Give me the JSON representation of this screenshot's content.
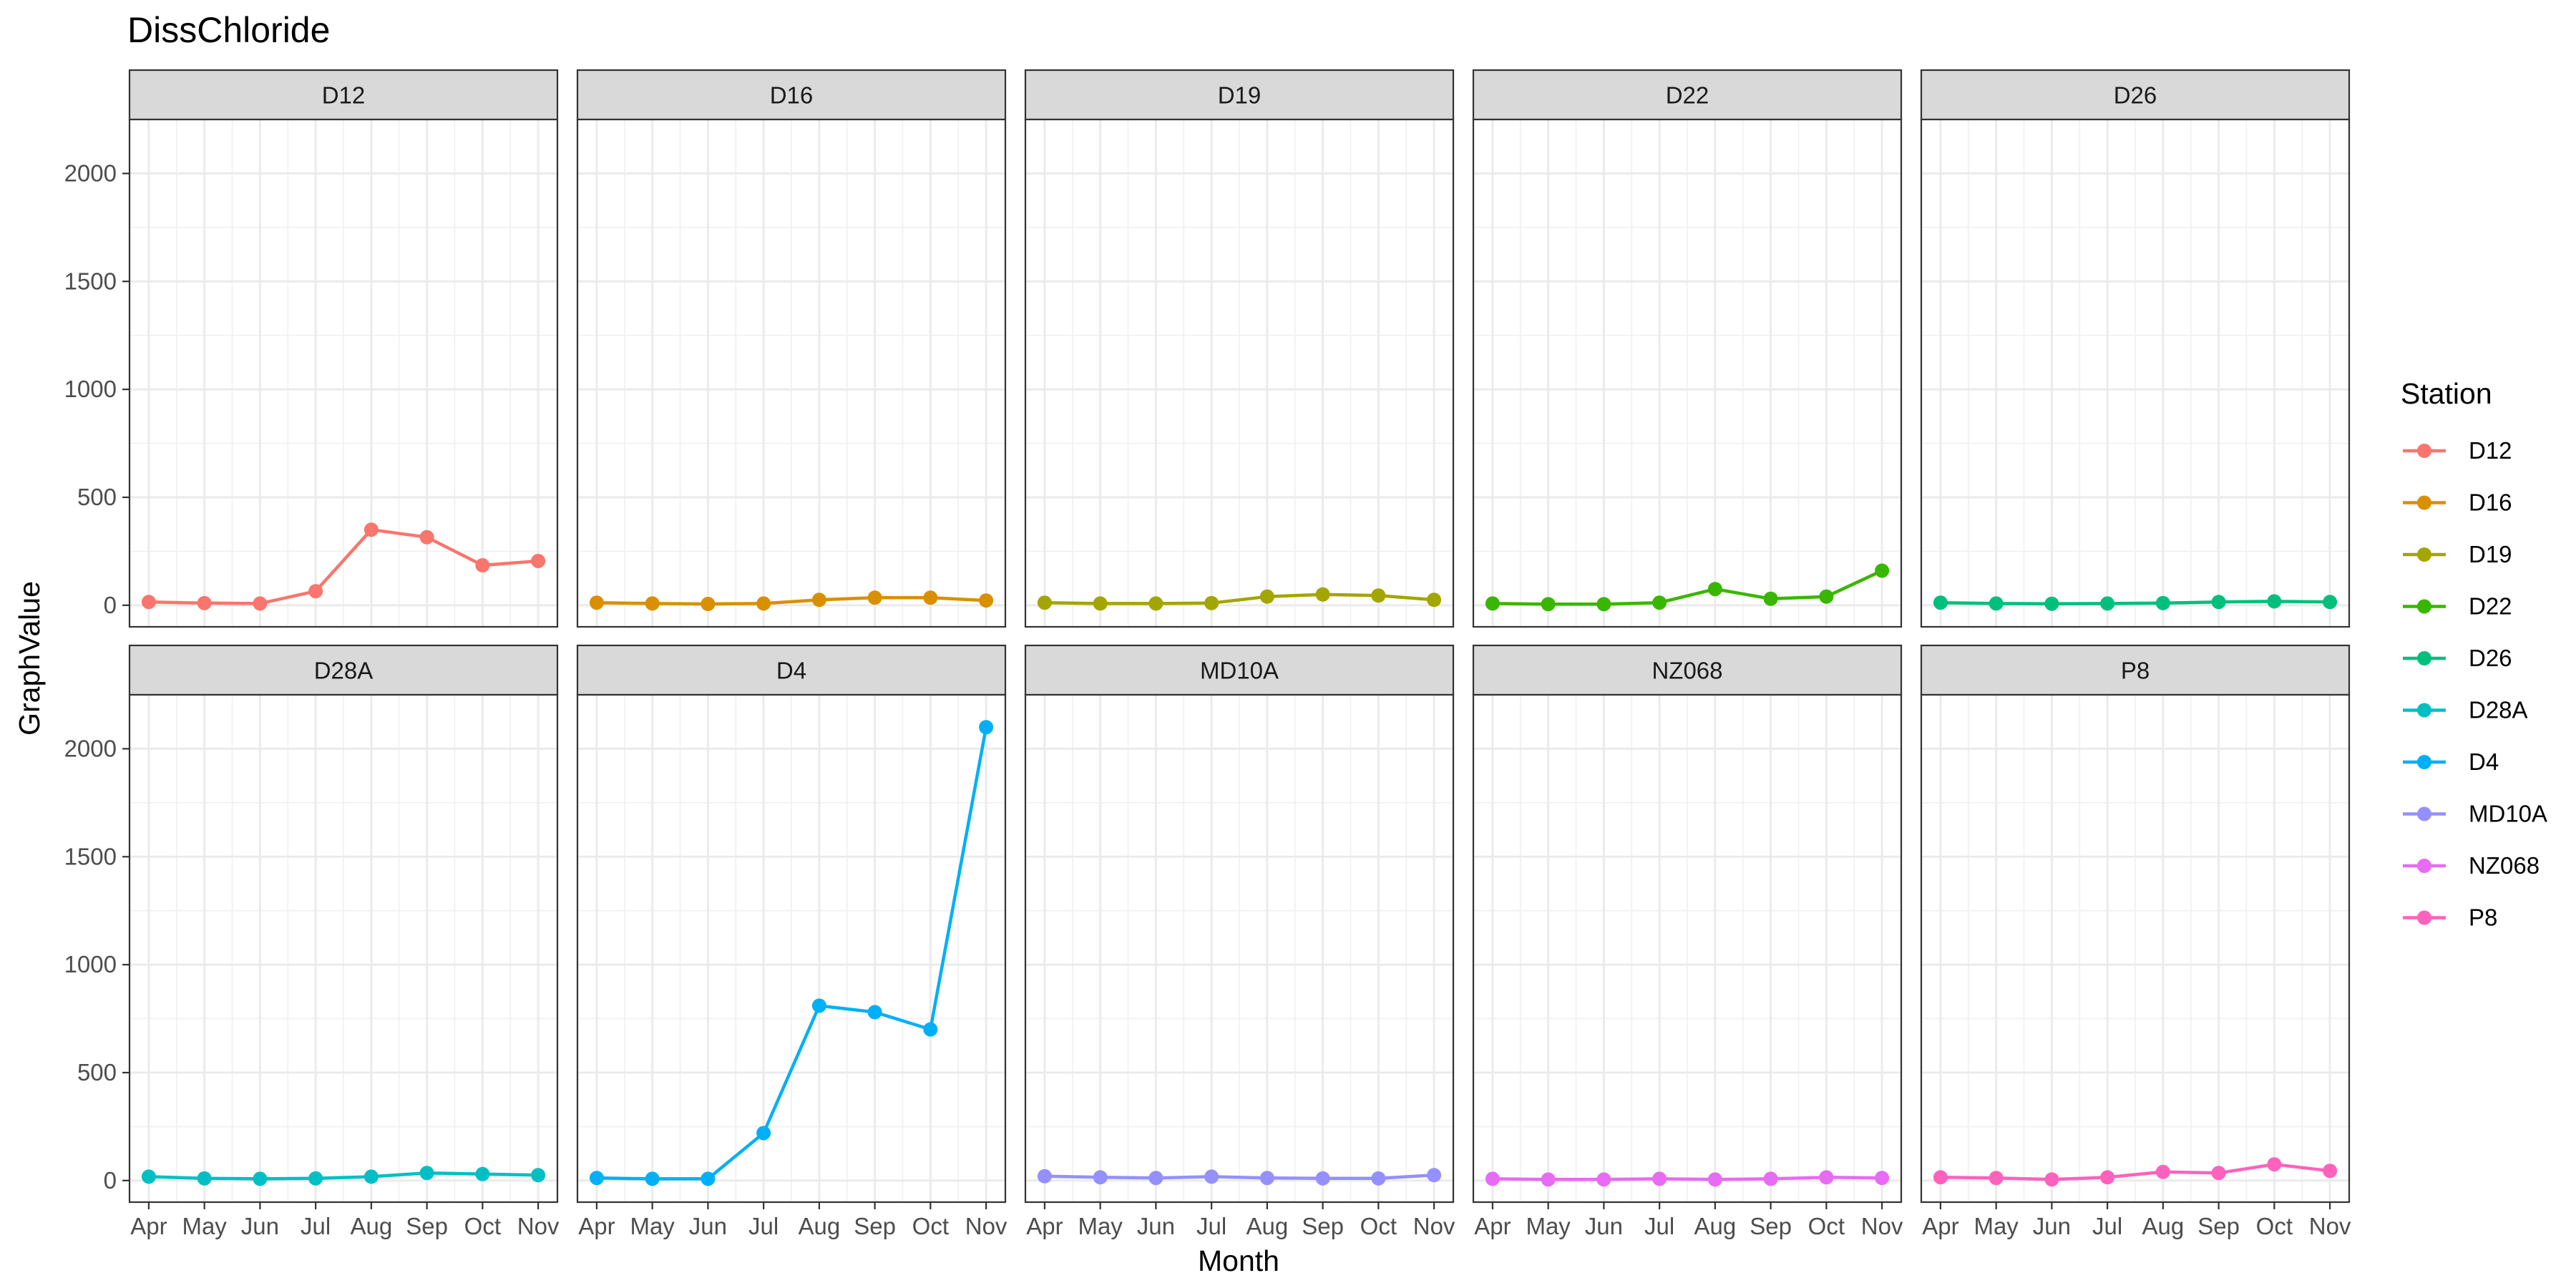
{
  "chart_data": {
    "type": "line",
    "title": "DissChloride",
    "xlabel": "Month",
    "ylabel": "GraphValue",
    "categories": [
      "Apr",
      "May",
      "Jun",
      "Jul",
      "Aug",
      "Sep",
      "Oct",
      "Nov"
    ],
    "yticks": [
      0,
      500,
      1000,
      1500,
      2000
    ],
    "ylim": [
      -100,
      2250
    ],
    "facet_layout": "5 columns x 2 rows, shared axes",
    "grid": true,
    "legend": {
      "title": "Station",
      "position": "right"
    },
    "series": [
      {
        "name": "D12",
        "color": "#F8766D",
        "values": [
          15,
          10,
          8,
          65,
          350,
          315,
          185,
          205
        ]
      },
      {
        "name": "D16",
        "color": "#D89000",
        "values": [
          12,
          8,
          6,
          8,
          25,
          35,
          35,
          22
        ]
      },
      {
        "name": "D19",
        "color": "#A3A500",
        "values": [
          12,
          8,
          8,
          10,
          40,
          50,
          45,
          25
        ]
      },
      {
        "name": "D22",
        "color": "#39B600",
        "values": [
          8,
          5,
          5,
          12,
          75,
          30,
          40,
          160
        ]
      },
      {
        "name": "D26",
        "color": "#00BF7D",
        "values": [
          12,
          8,
          7,
          8,
          10,
          15,
          18,
          15
        ]
      },
      {
        "name": "D28A",
        "color": "#00BFC4",
        "values": [
          18,
          10,
          8,
          10,
          18,
          35,
          30,
          25
        ]
      },
      {
        "name": "D4",
        "color": "#00B0F6",
        "values": [
          12,
          8,
          8,
          220,
          810,
          780,
          700,
          2100
        ]
      },
      {
        "name": "MD10A",
        "color": "#9590FF",
        "values": [
          20,
          15,
          12,
          18,
          12,
          10,
          10,
          25
        ]
      },
      {
        "name": "NZ068",
        "color": "#E76BF3",
        "values": [
          8,
          5,
          5,
          8,
          5,
          8,
          15,
          12
        ]
      },
      {
        "name": "P8",
        "color": "#FF62BC",
        "values": [
          15,
          12,
          5,
          15,
          40,
          35,
          75,
          45
        ]
      }
    ]
  }
}
